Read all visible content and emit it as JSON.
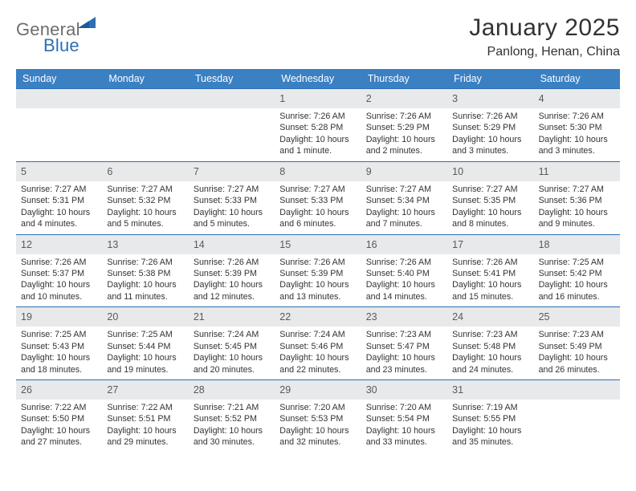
{
  "logo": {
    "general": "General",
    "blue": "Blue"
  },
  "title": "January 2025",
  "location": "Panlong, Henan, China",
  "colors": {
    "header_bg": "#3a80c3",
    "border": "#2d6fb5",
    "daynum_bg": "#e7e9eb",
    "text": "#333333",
    "logo_gray": "#6d6e71",
    "logo_blue": "#2d6fb5"
  },
  "days_of_week": [
    "Sunday",
    "Monday",
    "Tuesday",
    "Wednesday",
    "Thursday",
    "Friday",
    "Saturday"
  ],
  "weeks": [
    [
      null,
      null,
      null,
      {
        "n": "1",
        "sunrise": "7:26 AM",
        "sunset": "5:28 PM",
        "daylight": "10 hours and 1 minute."
      },
      {
        "n": "2",
        "sunrise": "7:26 AM",
        "sunset": "5:29 PM",
        "daylight": "10 hours and 2 minutes."
      },
      {
        "n": "3",
        "sunrise": "7:26 AM",
        "sunset": "5:29 PM",
        "daylight": "10 hours and 3 minutes."
      },
      {
        "n": "4",
        "sunrise": "7:26 AM",
        "sunset": "5:30 PM",
        "daylight": "10 hours and 3 minutes."
      }
    ],
    [
      {
        "n": "5",
        "sunrise": "7:27 AM",
        "sunset": "5:31 PM",
        "daylight": "10 hours and 4 minutes."
      },
      {
        "n": "6",
        "sunrise": "7:27 AM",
        "sunset": "5:32 PM",
        "daylight": "10 hours and 5 minutes."
      },
      {
        "n": "7",
        "sunrise": "7:27 AM",
        "sunset": "5:33 PM",
        "daylight": "10 hours and 5 minutes."
      },
      {
        "n": "8",
        "sunrise": "7:27 AM",
        "sunset": "5:33 PM",
        "daylight": "10 hours and 6 minutes."
      },
      {
        "n": "9",
        "sunrise": "7:27 AM",
        "sunset": "5:34 PM",
        "daylight": "10 hours and 7 minutes."
      },
      {
        "n": "10",
        "sunrise": "7:27 AM",
        "sunset": "5:35 PM",
        "daylight": "10 hours and 8 minutes."
      },
      {
        "n": "11",
        "sunrise": "7:27 AM",
        "sunset": "5:36 PM",
        "daylight": "10 hours and 9 minutes."
      }
    ],
    [
      {
        "n": "12",
        "sunrise": "7:26 AM",
        "sunset": "5:37 PM",
        "daylight": "10 hours and 10 minutes."
      },
      {
        "n": "13",
        "sunrise": "7:26 AM",
        "sunset": "5:38 PM",
        "daylight": "10 hours and 11 minutes."
      },
      {
        "n": "14",
        "sunrise": "7:26 AM",
        "sunset": "5:39 PM",
        "daylight": "10 hours and 12 minutes."
      },
      {
        "n": "15",
        "sunrise": "7:26 AM",
        "sunset": "5:39 PM",
        "daylight": "10 hours and 13 minutes."
      },
      {
        "n": "16",
        "sunrise": "7:26 AM",
        "sunset": "5:40 PM",
        "daylight": "10 hours and 14 minutes."
      },
      {
        "n": "17",
        "sunrise": "7:26 AM",
        "sunset": "5:41 PM",
        "daylight": "10 hours and 15 minutes."
      },
      {
        "n": "18",
        "sunrise": "7:25 AM",
        "sunset": "5:42 PM",
        "daylight": "10 hours and 16 minutes."
      }
    ],
    [
      {
        "n": "19",
        "sunrise": "7:25 AM",
        "sunset": "5:43 PM",
        "daylight": "10 hours and 18 minutes."
      },
      {
        "n": "20",
        "sunrise": "7:25 AM",
        "sunset": "5:44 PM",
        "daylight": "10 hours and 19 minutes."
      },
      {
        "n": "21",
        "sunrise": "7:24 AM",
        "sunset": "5:45 PM",
        "daylight": "10 hours and 20 minutes."
      },
      {
        "n": "22",
        "sunrise": "7:24 AM",
        "sunset": "5:46 PM",
        "daylight": "10 hours and 22 minutes."
      },
      {
        "n": "23",
        "sunrise": "7:23 AM",
        "sunset": "5:47 PM",
        "daylight": "10 hours and 23 minutes."
      },
      {
        "n": "24",
        "sunrise": "7:23 AM",
        "sunset": "5:48 PM",
        "daylight": "10 hours and 24 minutes."
      },
      {
        "n": "25",
        "sunrise": "7:23 AM",
        "sunset": "5:49 PM",
        "daylight": "10 hours and 26 minutes."
      }
    ],
    [
      {
        "n": "26",
        "sunrise": "7:22 AM",
        "sunset": "5:50 PM",
        "daylight": "10 hours and 27 minutes."
      },
      {
        "n": "27",
        "sunrise": "7:22 AM",
        "sunset": "5:51 PM",
        "daylight": "10 hours and 29 minutes."
      },
      {
        "n": "28",
        "sunrise": "7:21 AM",
        "sunset": "5:52 PM",
        "daylight": "10 hours and 30 minutes."
      },
      {
        "n": "29",
        "sunrise": "7:20 AM",
        "sunset": "5:53 PM",
        "daylight": "10 hours and 32 minutes."
      },
      {
        "n": "30",
        "sunrise": "7:20 AM",
        "sunset": "5:54 PM",
        "daylight": "10 hours and 33 minutes."
      },
      {
        "n": "31",
        "sunrise": "7:19 AM",
        "sunset": "5:55 PM",
        "daylight": "10 hours and 35 minutes."
      },
      null
    ]
  ],
  "labels": {
    "sunrise_prefix": "Sunrise: ",
    "sunset_prefix": "Sunset: ",
    "daylight_prefix": "Daylight: "
  }
}
